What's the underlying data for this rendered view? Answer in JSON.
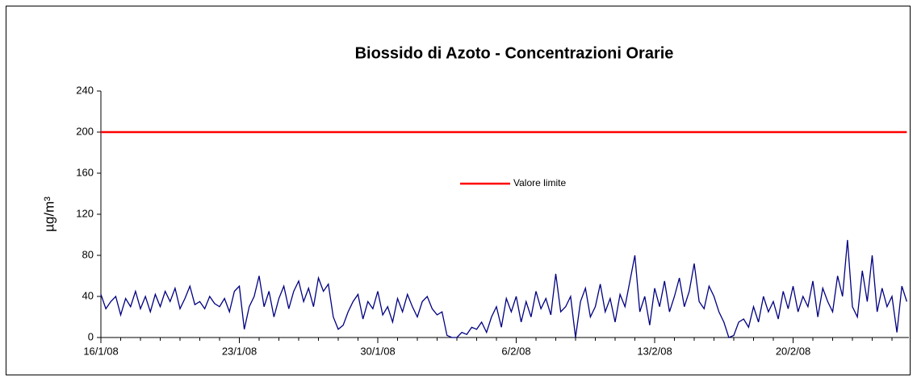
{
  "chart_data": {
    "type": "line",
    "title": "Biossido di Azoto -  Concentrazioni Orarie",
    "y_label": "µg/m³",
    "ylim": [
      0,
      240
    ],
    "yticks": [
      0,
      40,
      80,
      120,
      160,
      200,
      240
    ],
    "categories": [
      "16/1/08",
      null,
      null,
      null,
      null,
      null,
      null,
      null,
      null,
      null,
      null,
      null,
      null,
      null,
      null,
      null,
      null,
      null,
      null,
      null,
      null,
      null,
      null,
      null,
      null,
      null,
      null,
      null,
      "23/1/08",
      null,
      null,
      null,
      null,
      null,
      null,
      null,
      null,
      null,
      null,
      null,
      null,
      null,
      null,
      null,
      null,
      null,
      null,
      null,
      null,
      null,
      null,
      null,
      null,
      null,
      null,
      null,
      "30/1/08",
      null,
      null,
      null,
      null,
      null,
      null,
      null,
      null,
      null,
      null,
      null,
      null,
      null,
      null,
      null,
      null,
      null,
      null,
      null,
      null,
      null,
      null,
      null,
      null,
      null,
      null,
      null,
      "6/2/08",
      null,
      null,
      null,
      null,
      null,
      null,
      null,
      null,
      null,
      null,
      null,
      null,
      null,
      null,
      null,
      null,
      null,
      null,
      null,
      null,
      null,
      null,
      null,
      null,
      null,
      null,
      null,
      "13/2/08",
      null,
      null,
      null,
      null,
      null,
      null,
      null,
      null,
      null,
      null,
      null,
      null,
      null,
      null,
      null,
      null,
      null,
      null,
      null,
      null,
      null,
      null,
      null,
      null,
      null,
      null,
      null,
      "20/2/08",
      null,
      null,
      null,
      null,
      null,
      null,
      null,
      null,
      null,
      null,
      null,
      null,
      null,
      null,
      null,
      null,
      null,
      null,
      null,
      null,
      null,
      null,
      null
    ],
    "series": [
      {
        "color": "#000080",
        "values": [
          42,
          28,
          35,
          40,
          22,
          38,
          30,
          45,
          28,
          40,
          25,
          42,
          30,
          45,
          35,
          48,
          28,
          38,
          50,
          32,
          35,
          28,
          40,
          33,
          30,
          38,
          25,
          45,
          50,
          8,
          30,
          40,
          60,
          30,
          45,
          20,
          38,
          50,
          28,
          45,
          55,
          35,
          48,
          30,
          58,
          45,
          52,
          20,
          8,
          12,
          25,
          35,
          42,
          18,
          35,
          28,
          45,
          22,
          30,
          15,
          38,
          25,
          42,
          30,
          20,
          35,
          40,
          28,
          22,
          25,
          2,
          0,
          0,
          5,
          3,
          10,
          8,
          15,
          5,
          20,
          30,
          10,
          38,
          25,
          40,
          15,
          35,
          20,
          45,
          28,
          38,
          22,
          62,
          25,
          30,
          40,
          0,
          35,
          48,
          20,
          30,
          52,
          25,
          38,
          15,
          42,
          30,
          55,
          80,
          25,
          40,
          12,
          48,
          30,
          55,
          25,
          40,
          58,
          30,
          45,
          72,
          35,
          28,
          50,
          40,
          25,
          15,
          0,
          2,
          15,
          18,
          10,
          30,
          15,
          40,
          25,
          35,
          18,
          45,
          28,
          50,
          25,
          40,
          30,
          55,
          20,
          48,
          35,
          25,
          60,
          40,
          95,
          30,
          20,
          65,
          35,
          80,
          25,
          48,
          30,
          40,
          5,
          50,
          35
        ]
      }
    ],
    "threshold": {
      "name": "Valore limite",
      "value": 200,
      "color": "#ff0000"
    }
  }
}
